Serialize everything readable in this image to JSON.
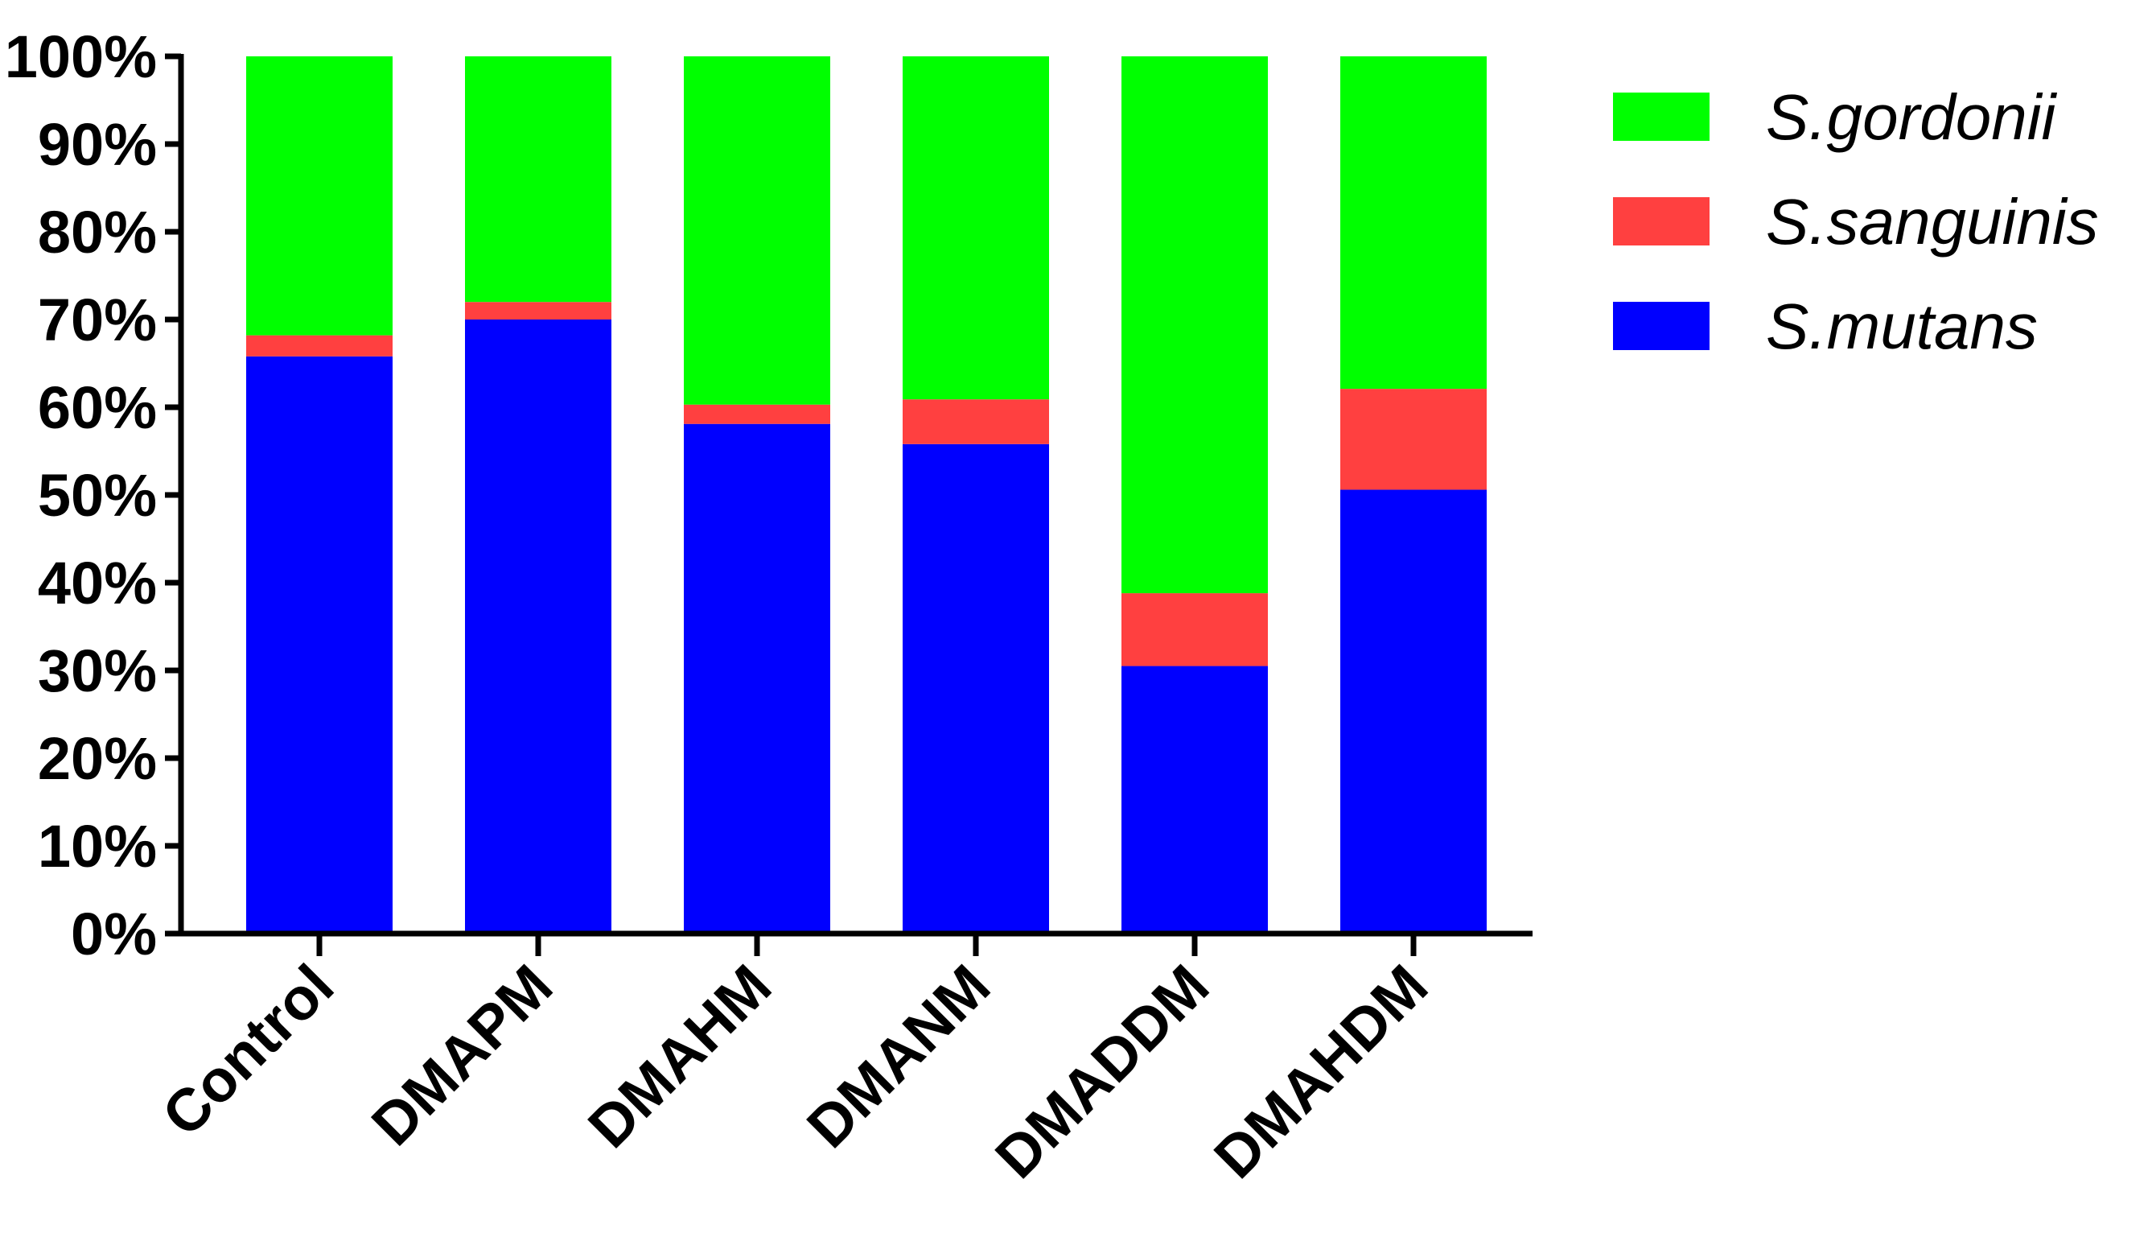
{
  "chart_data": {
    "type": "bar",
    "stacked": true,
    "categories": [
      "Control",
      "DMAPM",
      "DMAHM",
      "DMANM",
      "DMADDM",
      "DMAHDM"
    ],
    "series": [
      {
        "name": "S.mutans",
        "color": "#0000ff",
        "values": [
          65.8,
          70.0,
          58.1,
          55.8,
          30.5,
          50.6
        ]
      },
      {
        "name": "S.sanguinis",
        "color": "#ff4040",
        "values": [
          2.4,
          2.0,
          2.2,
          5.1,
          8.3,
          11.5
        ]
      },
      {
        "name": "S.gordonii",
        "color": "#00ff00",
        "values": [
          31.8,
          28.0,
          39.7,
          39.1,
          61.2,
          37.9
        ]
      }
    ],
    "ylim": [
      0,
      100
    ],
    "yticks": [
      "0%",
      "10%",
      "20%",
      "30%",
      "40%",
      "50%",
      "60%",
      "70%",
      "80%",
      "90%",
      "100%"
    ],
    "xlabel": "",
    "ylabel": "",
    "title": "",
    "grid": false,
    "legend": {
      "placement": "top-right",
      "order": [
        "S.gordonii",
        "S.sanguinis",
        "S.mutans"
      ]
    }
  }
}
